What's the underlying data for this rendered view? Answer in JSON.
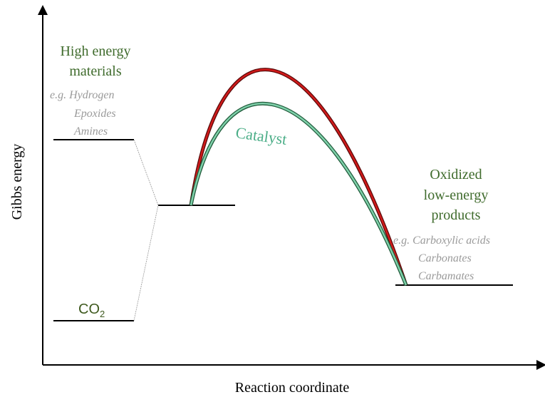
{
  "axes": {
    "y_label": "Gibbs energy",
    "x_label": "Reaction coordinate"
  },
  "reactants": {
    "title_lines": [
      "High energy",
      "materials"
    ],
    "examples": [
      "e.g. Hydrogen",
      "Epoxides",
      "Amines"
    ]
  },
  "co2": {
    "text": "CO",
    "subscript": "2"
  },
  "catalyst_label": "Catalyst",
  "products": {
    "title_lines": [
      "Oxidized",
      "low-energy",
      "products"
    ],
    "examples": [
      "e.g. Carboxylic acids",
      "Carbonates",
      "Carbamates"
    ]
  }
}
